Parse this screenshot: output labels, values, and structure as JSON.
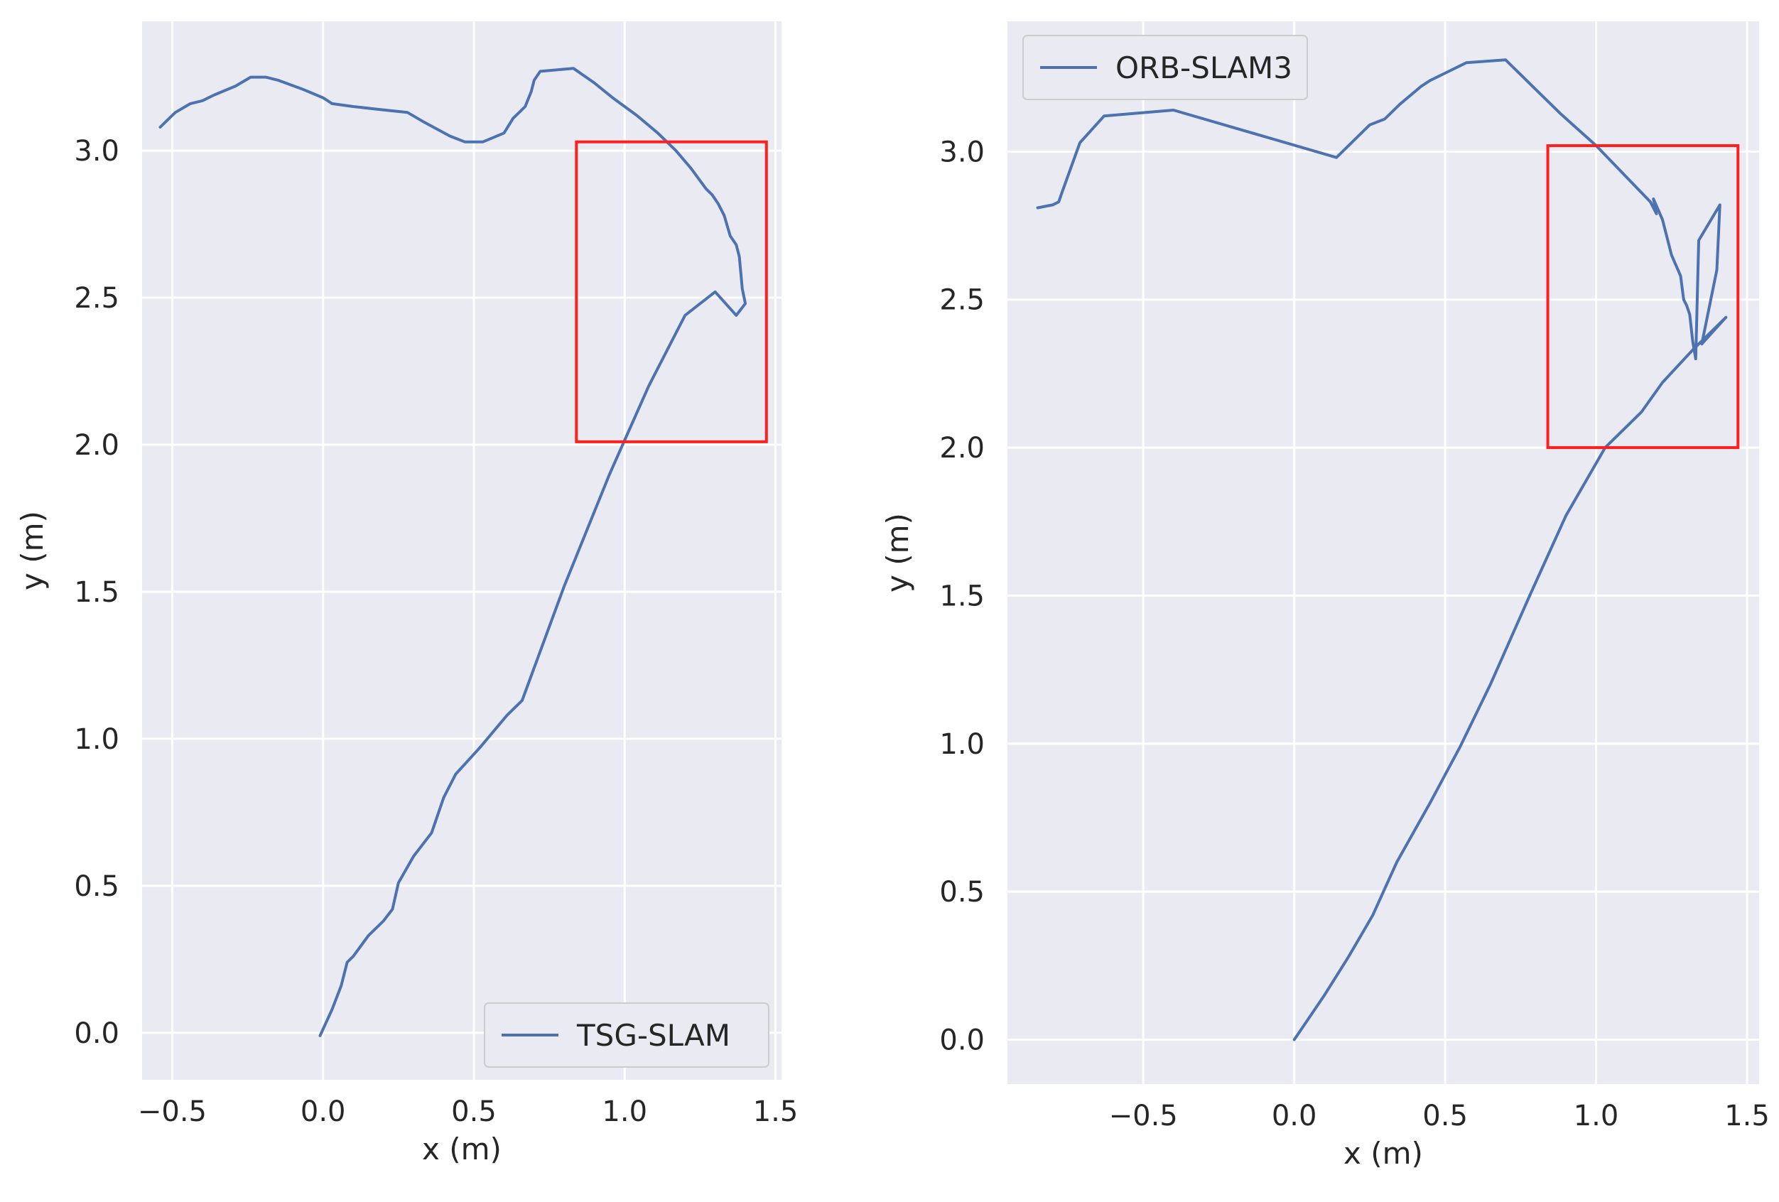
{
  "chart_data": [
    {
      "type": "line",
      "xlabel": "x (m)",
      "ylabel": "y (m)",
      "xlim": [
        -0.6,
        1.52
      ],
      "ylim": [
        -0.16,
        3.44
      ],
      "xticks": [
        -0.5,
        0.0,
        0.5,
        1.0,
        1.5
      ],
      "yticks": [
        0.0,
        0.5,
        1.0,
        1.5,
        2.0,
        2.5,
        3.0
      ],
      "grid": true,
      "legend_position": "bottom-right",
      "series": [
        {
          "name": "TSG-SLAM",
          "color": "#4c72b0",
          "x": [
            -0.01,
            0.03,
            0.06,
            0.08,
            0.1,
            0.15,
            0.2,
            0.23,
            0.25,
            0.3,
            0.36,
            0.4,
            0.44,
            0.52,
            0.61,
            0.66,
            0.8,
            0.95,
            1.08,
            1.2,
            1.3,
            1.37,
            1.4,
            1.39,
            1.38,
            1.37,
            1.35,
            1.33,
            1.31,
            1.29,
            1.27,
            1.22,
            1.17,
            1.11,
            1.04,
            0.96,
            0.9,
            0.83,
            0.72,
            0.7,
            0.69,
            0.67,
            0.66,
            0.65,
            0.63,
            0.6,
            0.53,
            0.47,
            0.42,
            0.33,
            0.28,
            0.19,
            0.1,
            0.03,
            0.0,
            -0.07,
            -0.15,
            -0.19,
            -0.24,
            -0.29,
            -0.36,
            -0.38,
            -0.4,
            -0.44,
            -0.49,
            -0.52,
            -0.54
          ],
          "y": [
            -0.01,
            0.08,
            0.16,
            0.24,
            0.26,
            0.33,
            0.38,
            0.42,
            0.51,
            0.6,
            0.68,
            0.8,
            0.88,
            0.97,
            1.08,
            1.13,
            1.52,
            1.9,
            2.2,
            2.44,
            2.52,
            2.44,
            2.48,
            2.53,
            2.64,
            2.68,
            2.71,
            2.78,
            2.82,
            2.85,
            2.87,
            2.94,
            3.0,
            3.06,
            3.12,
            3.18,
            3.23,
            3.28,
            3.27,
            3.24,
            3.2,
            3.15,
            3.14,
            3.13,
            3.11,
            3.06,
            3.03,
            3.03,
            3.05,
            3.1,
            3.13,
            3.14,
            3.15,
            3.16,
            3.18,
            3.21,
            3.24,
            3.25,
            3.25,
            3.22,
            3.19,
            3.18,
            3.17,
            3.16,
            3.13,
            3.1,
            3.08
          ]
        }
      ],
      "annotations": [
        {
          "type": "rectangle",
          "color": "#ff1f1f",
          "x0": 0.84,
          "x1": 1.47,
          "y0": 2.01,
          "y1": 3.03
        }
      ]
    },
    {
      "type": "line",
      "xlabel": "x (m)",
      "ylabel": "y (m)",
      "xlim": [
        -0.95,
        1.54
      ],
      "ylim": [
        -0.15,
        3.44
      ],
      "xticks": [
        -0.5,
        0.0,
        0.5,
        1.0,
        1.5
      ],
      "yticks": [
        0.0,
        0.5,
        1.0,
        1.5,
        2.0,
        2.5,
        3.0
      ],
      "grid": true,
      "legend_position": "top-left",
      "series": [
        {
          "name": "ORB-SLAM3",
          "color": "#4c72b0",
          "x": [
            0.0,
            0.1,
            0.18,
            0.26,
            0.34,
            0.45,
            0.55,
            0.65,
            0.78,
            0.9,
            1.03,
            1.15,
            1.22,
            1.32,
            1.43,
            1.35,
            1.4,
            1.41,
            1.34,
            1.33,
            1.32,
            1.31,
            1.3,
            1.29,
            1.28,
            1.25,
            1.22,
            1.19,
            1.2,
            1.18,
            1.0,
            0.88,
            0.7,
            0.57,
            0.45,
            0.42,
            0.35,
            0.3,
            0.25,
            0.14,
            -0.4,
            -0.63,
            -0.71,
            -0.77,
            -0.78,
            -0.8,
            -0.85
          ],
          "y": [
            0.0,
            0.15,
            0.28,
            0.42,
            0.6,
            0.8,
            0.99,
            1.2,
            1.5,
            1.77,
            2.0,
            2.12,
            2.22,
            2.33,
            2.44,
            2.35,
            2.6,
            2.82,
            2.7,
            2.3,
            2.36,
            2.45,
            2.48,
            2.5,
            2.58,
            2.65,
            2.77,
            2.84,
            2.79,
            2.83,
            3.02,
            3.13,
            3.31,
            3.3,
            3.24,
            3.22,
            3.16,
            3.11,
            3.09,
            2.98,
            3.14,
            3.12,
            3.03,
            2.86,
            2.83,
            2.82,
            2.81
          ]
        }
      ],
      "annotations": [
        {
          "type": "rectangle",
          "color": "#ff1f1f",
          "x0": 0.84,
          "x1": 1.47,
          "y0": 2.0,
          "y1": 3.02
        }
      ]
    }
  ]
}
